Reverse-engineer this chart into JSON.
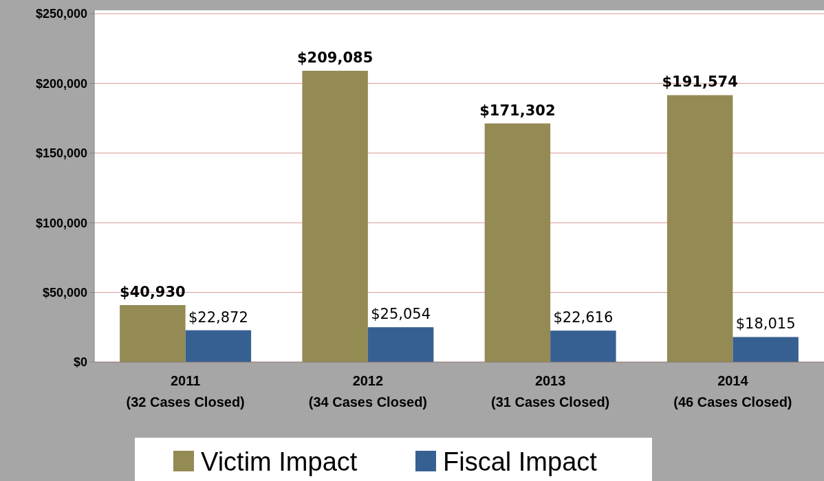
{
  "chart_data": {
    "type": "bar",
    "categories": [
      "2011\n(32 Cases Closed)",
      "2012\n(34 Cases Closed)",
      "2013\n(31 Cases Closed)",
      "2014\n(46 Cases Closed)"
    ],
    "series": [
      {
        "name": "Victim Impact",
        "color": "#948a54",
        "values": [
          40930,
          209085,
          171302,
          191574
        ],
        "value_labels": [
          "$40,930",
          "$209,085",
          "$171,302",
          "$191,574"
        ]
      },
      {
        "name": "Fiscal Impact",
        "color": "#376092",
        "values": [
          22872,
          25054,
          22616,
          18015
        ],
        "value_labels": [
          "$22,872",
          "$25,054",
          "$22,616",
          "$18,015"
        ]
      }
    ],
    "ylim": [
      0,
      250000
    ],
    "yticks": [
      {
        "value": 0,
        "label": "$0"
      },
      {
        "value": 50000,
        "label": "$50,000"
      },
      {
        "value": 100000,
        "label": "$100,000"
      },
      {
        "value": 150000,
        "label": "$150,000"
      },
      {
        "value": 200000,
        "label": "$200,000"
      },
      {
        "value": 250000,
        "label": "$250,000"
      }
    ],
    "grid": "y",
    "legend": "bottom"
  }
}
